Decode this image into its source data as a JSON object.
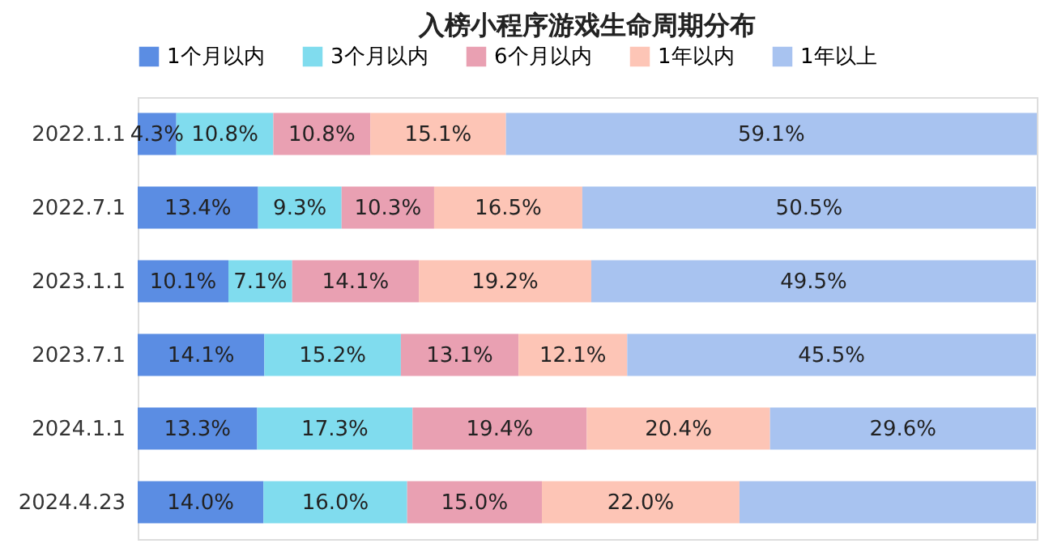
{
  "chart_data": {
    "type": "bar",
    "orientation": "horizontal",
    "stacked": true,
    "title": "入榜小程序游戏生命周期分布",
    "legend": "top",
    "categories": [
      "2022.1.1",
      "2022.7.1",
      "2023.1.1",
      "2023.7.1",
      "2024.1.1",
      "2024.4.23"
    ],
    "series": [
      {
        "name": "1个月以内",
        "color": "#5b8de3",
        "values": [
          4.3,
          13.4,
          10.1,
          14.1,
          13.3,
          14.0
        ],
        "value_labels": [
          "4.3%",
          "13.4%",
          "10.1%",
          "14.1%",
          "13.3%",
          "14.0%"
        ]
      },
      {
        "name": "3个月以内",
        "color": "#80dcee",
        "values": [
          10.8,
          9.3,
          7.1,
          15.2,
          17.3,
          16.0
        ],
        "value_labels": [
          "10.8%",
          "9.3%",
          "7.1%",
          "15.2%",
          "17.3%",
          "16.0%"
        ]
      },
      {
        "name": "6个月以内",
        "color": "#e9a0b2",
        "values": [
          10.8,
          10.3,
          14.1,
          13.1,
          19.4,
          15.0
        ],
        "value_labels": [
          "10.8%",
          "10.3%",
          "14.1%",
          "13.1%",
          "19.4%",
          "15.0%"
        ]
      },
      {
        "name": "1年以内",
        "color": "#fdc5b6",
        "values": [
          15.1,
          16.5,
          19.2,
          12.1,
          20.4,
          22.0
        ],
        "value_labels": [
          "15.1%",
          "16.5%",
          "19.2%",
          "12.1%",
          "20.4%",
          "22.0%"
        ]
      },
      {
        "name": "1年以上",
        "color": "#a8c3f0",
        "values": [
          59.1,
          50.5,
          49.5,
          45.5,
          29.6,
          33.0
        ],
        "value_labels": [
          "59.1%",
          "50.5%",
          "49.5%",
          "45.5%",
          "29.6%",
          null
        ]
      }
    ]
  }
}
